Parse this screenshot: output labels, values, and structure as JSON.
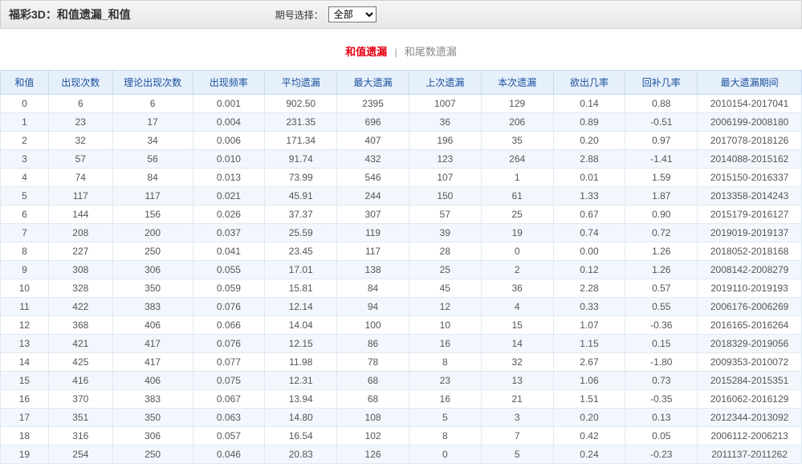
{
  "header": {
    "title": "福彩3D：和值遗漏_和值",
    "period_label": "期号选择：",
    "period_value": "全部"
  },
  "tabs": {
    "active": "和值遗漏",
    "divider": "|",
    "inactive": "和尾数遗漏"
  },
  "table": {
    "columns": [
      "和值",
      "出现次数",
      "理论出现次数",
      "出现频率",
      "平均遗漏",
      "最大遗漏",
      "上次遗漏",
      "本次遗漏",
      "欲出几率",
      "回补几率",
      "最大遗漏期间"
    ],
    "rows": [
      [
        "0",
        "6",
        "6",
        "0.001",
        "902.50",
        "2395",
        "1007",
        "129",
        "0.14",
        "0.88",
        "2010154-2017041"
      ],
      [
        "1",
        "23",
        "17",
        "0.004",
        "231.35",
        "696",
        "36",
        "206",
        "0.89",
        "-0.51",
        "2006199-2008180"
      ],
      [
        "2",
        "32",
        "34",
        "0.006",
        "171.34",
        "407",
        "196",
        "35",
        "0.20",
        "0.97",
        "2017078-2018126"
      ],
      [
        "3",
        "57",
        "56",
        "0.010",
        "91.74",
        "432",
        "123",
        "264",
        "2.88",
        "-1.41",
        "2014088-2015162"
      ],
      [
        "4",
        "74",
        "84",
        "0.013",
        "73.99",
        "546",
        "107",
        "1",
        "0.01",
        "1.59",
        "2015150-2016337"
      ],
      [
        "5",
        "117",
        "117",
        "0.021",
        "45.91",
        "244",
        "150",
        "61",
        "1.33",
        "1.87",
        "2013358-2014243"
      ],
      [
        "6",
        "144",
        "156",
        "0.026",
        "37.37",
        "307",
        "57",
        "25",
        "0.67",
        "0.90",
        "2015179-2016127"
      ],
      [
        "7",
        "208",
        "200",
        "0.037",
        "25.59",
        "119",
        "39",
        "19",
        "0.74",
        "0.72",
        "2019019-2019137"
      ],
      [
        "8",
        "227",
        "250",
        "0.041",
        "23.45",
        "117",
        "28",
        "0",
        "0.00",
        "1.26",
        "2018052-2018168"
      ],
      [
        "9",
        "308",
        "306",
        "0.055",
        "17.01",
        "138",
        "25",
        "2",
        "0.12",
        "1.26",
        "2008142-2008279"
      ],
      [
        "10",
        "328",
        "350",
        "0.059",
        "15.81",
        "84",
        "45",
        "36",
        "2.28",
        "0.57",
        "2019110-2019193"
      ],
      [
        "11",
        "422",
        "383",
        "0.076",
        "12.14",
        "94",
        "12",
        "4",
        "0.33",
        "0.55",
        "2006176-2006269"
      ],
      [
        "12",
        "368",
        "406",
        "0.066",
        "14.04",
        "100",
        "10",
        "15",
        "1.07",
        "-0.36",
        "2016165-2016264"
      ],
      [
        "13",
        "421",
        "417",
        "0.076",
        "12.15",
        "86",
        "16",
        "14",
        "1.15",
        "0.15",
        "2018329-2019056"
      ],
      [
        "14",
        "425",
        "417",
        "0.077",
        "11.98",
        "78",
        "8",
        "32",
        "2.67",
        "-1.80",
        "2009353-2010072"
      ],
      [
        "15",
        "416",
        "406",
        "0.075",
        "12.31",
        "68",
        "23",
        "13",
        "1.06",
        "0.73",
        "2015284-2015351"
      ],
      [
        "16",
        "370",
        "383",
        "0.067",
        "13.94",
        "68",
        "16",
        "21",
        "1.51",
        "-0.35",
        "2016062-2016129"
      ],
      [
        "17",
        "351",
        "350",
        "0.063",
        "14.80",
        "108",
        "5",
        "3",
        "0.20",
        "0.13",
        "2012344-2013092"
      ],
      [
        "18",
        "316",
        "306",
        "0.057",
        "16.54",
        "102",
        "8",
        "7",
        "0.42",
        "0.05",
        "2006112-2006213"
      ],
      [
        "19",
        "254",
        "250",
        "0.046",
        "20.83",
        "126",
        "0",
        "5",
        "0.24",
        "-0.23",
        "2011137-2011262"
      ]
    ]
  }
}
